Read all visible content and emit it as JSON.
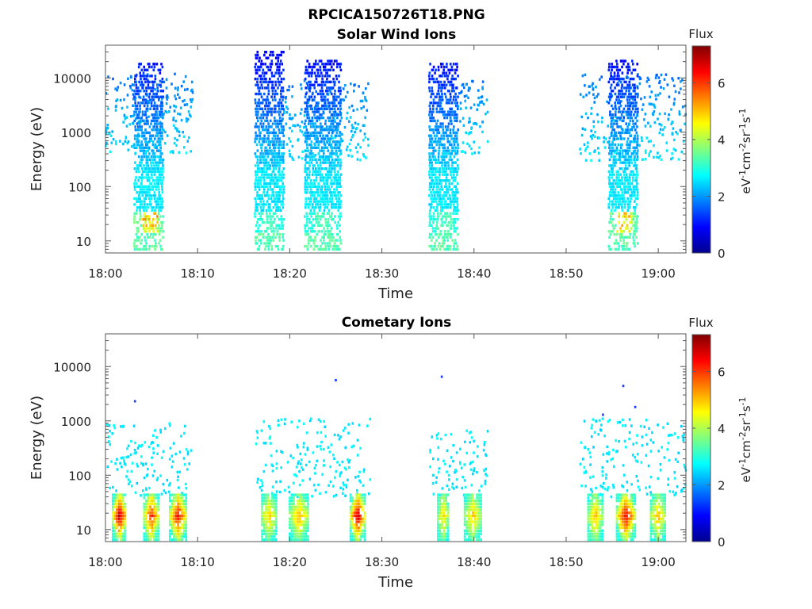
{
  "figure": {
    "title": "RPCICA150726T18.PNG"
  },
  "chart_data": [
    {
      "type": "heatmap",
      "title": "Solar Wind Ions",
      "xlabel": "Time",
      "ylabel": "Energy (eV)",
      "x_ticks": [
        "18:00",
        "18:10",
        "18:20",
        "18:30",
        "18:40",
        "18:50",
        "19:00"
      ],
      "x_range_minutes": [
        0,
        63
      ],
      "y_scale": "log",
      "y_ticks": [
        10,
        100,
        1000,
        10000
      ],
      "y_range": [
        6,
        40000
      ],
      "colorbar": {
        "title": "Flux",
        "label": "eV-1cm-2sr-1s-1",
        "ticks": [
          0,
          2,
          4,
          6
        ],
        "range": [
          0,
          7.3
        ],
        "colormap": "jet"
      },
      "grid": false,
      "bursts": [
        {
          "start_min": 3.2,
          "end_min": 6.3,
          "max_energy_eV": 20000,
          "peak_flux": 5.5
        },
        {
          "start_min": 16.3,
          "end_min": 19.4,
          "max_energy_eV": 30000,
          "peak_flux": 3.3
        },
        {
          "start_min": 21.7,
          "end_min": 25.5,
          "max_energy_eV": 22000,
          "peak_flux": 3.4
        },
        {
          "start_min": 35.2,
          "end_min": 38.4,
          "max_energy_eV": 18000,
          "peak_flux": 3.4
        },
        {
          "start_min": 54.7,
          "end_min": 57.9,
          "max_energy_eV": 22000,
          "peak_flux": 5.3
        }
      ],
      "sparse_regions": [
        {
          "start_min": 0,
          "end_min": 9.5,
          "emin": 400,
          "emax": 12000
        },
        {
          "start_min": 19.2,
          "end_min": 28.8,
          "emin": 300,
          "emax": 9000
        },
        {
          "start_min": 38.2,
          "end_min": 41.5,
          "emin": 400,
          "emax": 9000
        },
        {
          "start_min": 51.5,
          "end_min": 63,
          "emin": 300,
          "emax": 12000
        }
      ]
    },
    {
      "type": "heatmap",
      "title": "Cometary Ions",
      "xlabel": "Time",
      "ylabel": "Energy (eV)",
      "x_ticks": [
        "18:00",
        "18:10",
        "18:20",
        "18:30",
        "18:40",
        "18:50",
        "19:00"
      ],
      "x_range_minutes": [
        0,
        63
      ],
      "y_scale": "log",
      "y_ticks": [
        10,
        100,
        1000,
        10000
      ],
      "y_range": [
        6,
        40000
      ],
      "colorbar": {
        "title": "Flux",
        "label": "eV-1cm-2sr-1s-1",
        "ticks": [
          0,
          2,
          4,
          6
        ],
        "range": [
          0,
          7.3
        ],
        "colormap": "jet"
      },
      "grid": false,
      "core_blobs": [
        {
          "start_min": 0.8,
          "end_min": 2.3,
          "peak_flux": 7.0
        },
        {
          "start_min": 4.2,
          "end_min": 5.8,
          "peak_flux": 6.3
        },
        {
          "start_min": 7.0,
          "end_min": 8.8,
          "peak_flux": 6.5
        },
        {
          "start_min": 17.0,
          "end_min": 18.6,
          "peak_flux": 5.0
        },
        {
          "start_min": 20.0,
          "end_min": 22.1,
          "peak_flux": 5.2
        },
        {
          "start_min": 26.6,
          "end_min": 28.2,
          "peak_flux": 7.0
        },
        {
          "start_min": 36.1,
          "end_min": 37.3,
          "peak_flux": 4.9
        },
        {
          "start_min": 39.0,
          "end_min": 40.8,
          "peak_flux": 5.0
        },
        {
          "start_min": 52.4,
          "end_min": 54.0,
          "peak_flux": 5.1
        },
        {
          "start_min": 55.5,
          "end_min": 57.5,
          "peak_flux": 6.6
        },
        {
          "start_min": 59.2,
          "end_min": 60.8,
          "peak_flux": 5.2
        }
      ],
      "sparse_regions": [
        {
          "start_min": 0,
          "end_min": 9.5,
          "emin": 40,
          "emax": 900
        },
        {
          "start_min": 16.3,
          "end_min": 28.8,
          "emin": 40,
          "emax": 1100
        },
        {
          "start_min": 35.2,
          "end_min": 41.5,
          "emin": 40,
          "emax": 700
        },
        {
          "start_min": 51.5,
          "end_min": 63,
          "emin": 40,
          "emax": 1100
        }
      ],
      "isolated_points": [
        {
          "t_min": 3.2,
          "e_eV": 2300
        },
        {
          "t_min": 25.0,
          "e_eV": 5600
        },
        {
          "t_min": 36.5,
          "e_eV": 6500
        },
        {
          "t_min": 56.2,
          "e_eV": 4400
        },
        {
          "t_min": 54.0,
          "e_eV": 1300
        },
        {
          "t_min": 57.5,
          "e_eV": 1800
        }
      ]
    }
  ]
}
